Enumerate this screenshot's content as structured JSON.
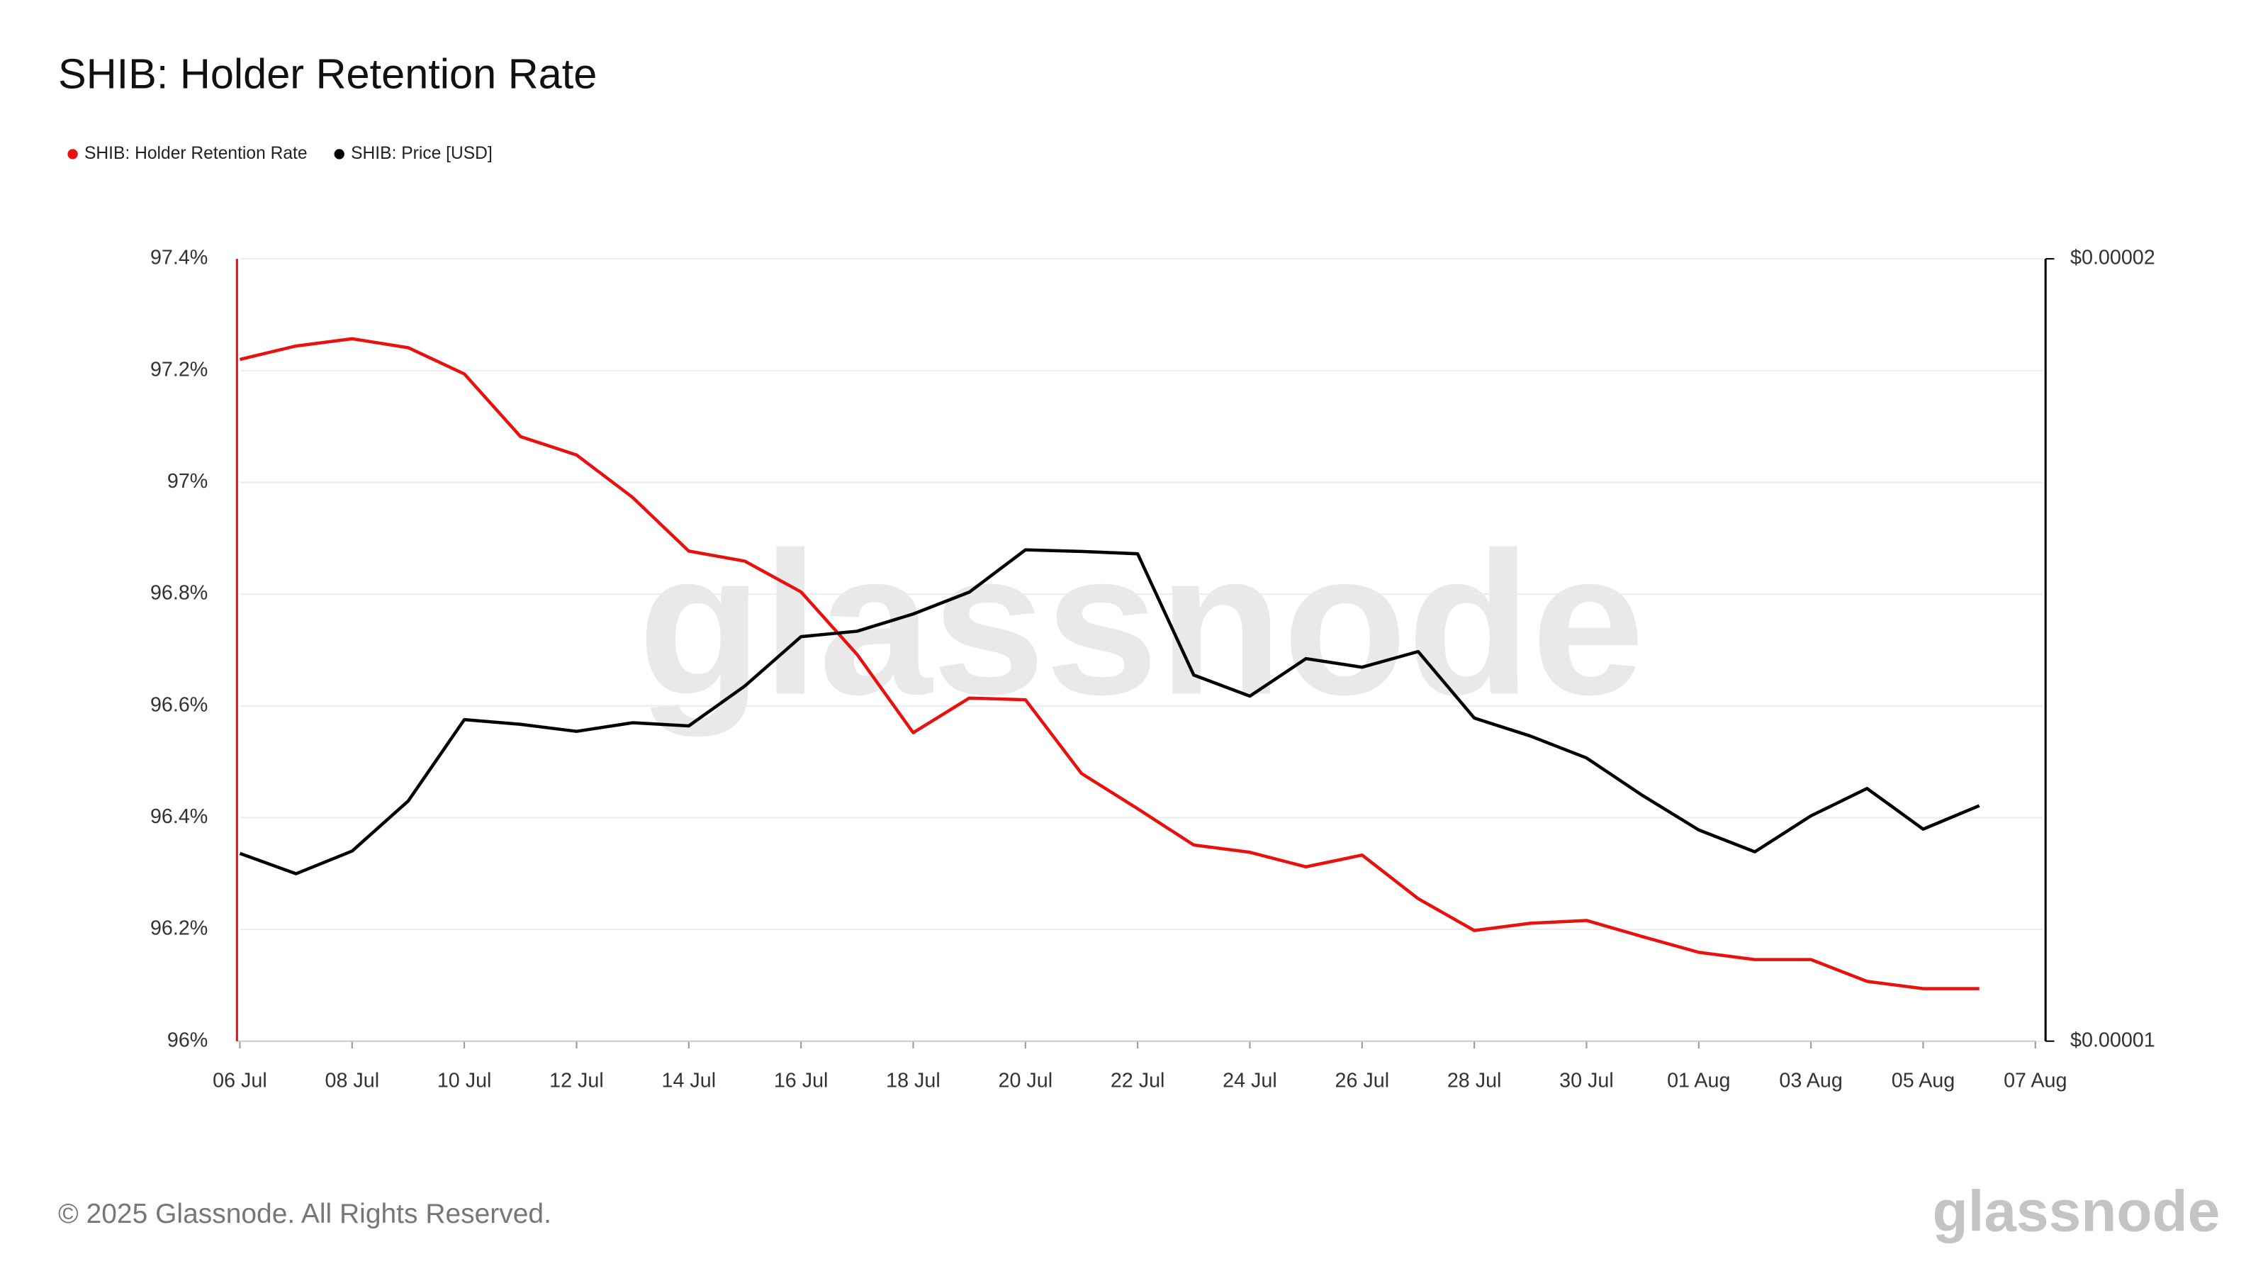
{
  "chart_data": {
    "type": "line",
    "title": "SHIB: Holder Retention Rate",
    "x": [
      "06 Jul",
      "07 Jul",
      "08 Jul",
      "09 Jul",
      "10 Jul",
      "11 Jul",
      "12 Jul",
      "13 Jul",
      "14 Jul",
      "15 Jul",
      "16 Jul",
      "17 Jul",
      "18 Jul",
      "19 Jul",
      "20 Jul",
      "21 Jul",
      "22 Jul",
      "23 Jul",
      "24 Jul",
      "25 Jul",
      "26 Jul",
      "27 Jul",
      "28 Jul",
      "29 Jul",
      "30 Jul",
      "31 Jul",
      "01 Aug",
      "02 Aug",
      "03 Aug",
      "04 Aug",
      "05 Aug",
      "06 Aug"
    ],
    "series": [
      {
        "name": "SHIB: Holder Retention Rate",
        "color": "#e8110f",
        "axis": "y",
        "values": [
          97.22,
          97.244,
          97.257,
          97.241,
          97.194,
          97.082,
          97.049,
          96.973,
          96.877,
          96.859,
          96.804,
          96.692,
          96.552,
          96.614,
          96.611,
          96.479,
          96.416,
          96.351,
          96.338,
          96.312,
          96.333,
          96.255,
          96.198,
          96.211,
          96.216,
          96.187,
          96.159,
          96.146,
          96.146,
          96.107,
          96.094,
          96.094
        ]
      },
      {
        "name": "SHIB: Price [USD]",
        "color": "#000000",
        "axis": "y2",
        "values": [
          1.24e-05,
          1.214e-05,
          1.243e-05,
          1.307e-05,
          1.411e-05,
          1.405e-05,
          1.396e-05,
          1.407e-05,
          1.403e-05,
          1.454e-05,
          1.517e-05,
          1.524e-05,
          1.546e-05,
          1.574e-05,
          1.628e-05,
          1.626e-05,
          1.623e-05,
          1.468e-05,
          1.441e-05,
          1.489e-05,
          1.478e-05,
          1.498e-05,
          1.413e-05,
          1.39e-05,
          1.362e-05,
          1.314e-05,
          1.27e-05,
          1.242e-05,
          1.288e-05,
          1.323e-05,
          1.271e-05,
          1.301e-05
        ]
      }
    ],
    "xlim": [
      "06 Jul",
      "07 Aug"
    ],
    "xticks": [
      "06 Jul",
      "08 Jul",
      "10 Jul",
      "12 Jul",
      "14 Jul",
      "16 Jul",
      "18 Jul",
      "20 Jul",
      "22 Jul",
      "24 Jul",
      "26 Jul",
      "28 Jul",
      "30 Jul",
      "01 Aug",
      "03 Aug",
      "05 Aug",
      "07 Aug"
    ],
    "ylim": [
      96,
      97.4
    ],
    "yticks": [
      {
        "value": 96,
        "label": "96%"
      },
      {
        "value": 96.2,
        "label": "96.2%"
      },
      {
        "value": 96.4,
        "label": "96.4%"
      },
      {
        "value": 96.6,
        "label": "96.6%"
      },
      {
        "value": 96.8,
        "label": "96.8%"
      },
      {
        "value": 97,
        "label": "97%"
      },
      {
        "value": 97.2,
        "label": "97.2%"
      },
      {
        "value": 97.4,
        "label": "97.4%"
      }
    ],
    "y2lim": [
      1e-05,
      2e-05
    ],
    "y2ticks": [
      {
        "value": 1e-05,
        "label": "$0.00001"
      },
      {
        "value": 2e-05,
        "label": "$0.00002"
      }
    ],
    "grid": true,
    "legend": "top-left",
    "watermark": "glassnode",
    "footer": "© 2025 Glassnode. All Rights Reserved.",
    "logo": "glassnode"
  }
}
